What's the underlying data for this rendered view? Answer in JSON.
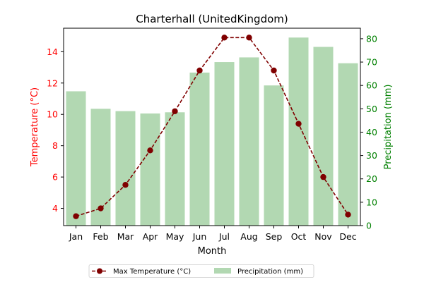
{
  "chart_data": {
    "type": "bar+line",
    "title": "Charterhall (UnitedKingdom)",
    "xlabel": "Month",
    "categories": [
      "Jan",
      "Feb",
      "Mar",
      "Apr",
      "May",
      "Jun",
      "Jul",
      "Aug",
      "Sep",
      "Oct",
      "Nov",
      "Dec"
    ],
    "series": [
      {
        "name": "Max Temperature (°C)",
        "axis": "left",
        "kind": "line",
        "color": "#800000",
        "values": [
          3.5,
          4.0,
          5.5,
          7.7,
          10.2,
          12.8,
          14.9,
          14.9,
          12.8,
          9.4,
          6.0,
          3.6
        ]
      },
      {
        "name": "Precipitation (mm)",
        "axis": "right",
        "kind": "bar",
        "color": "#b2d8b2",
        "values": [
          57.5,
          50.0,
          49.0,
          48.0,
          48.5,
          65.5,
          70.0,
          72.0,
          60.0,
          80.5,
          76.5,
          69.5
        ]
      }
    ],
    "y_left": {
      "label": "Temperature (°C)",
      "color": "#ff0000",
      "ylim": [
        2.9,
        15.5
      ],
      "ticks": [
        4,
        6,
        8,
        10,
        12,
        14
      ]
    },
    "y_right": {
      "label": "Precipitation (mm)",
      "color": "#008000",
      "ylim": [
        0,
        84.5
      ],
      "ticks": [
        0,
        10,
        20,
        30,
        40,
        50,
        60,
        70,
        80
      ]
    },
    "grid": false,
    "legend": {
      "placement": "bottom-center",
      "columns": 2
    }
  }
}
